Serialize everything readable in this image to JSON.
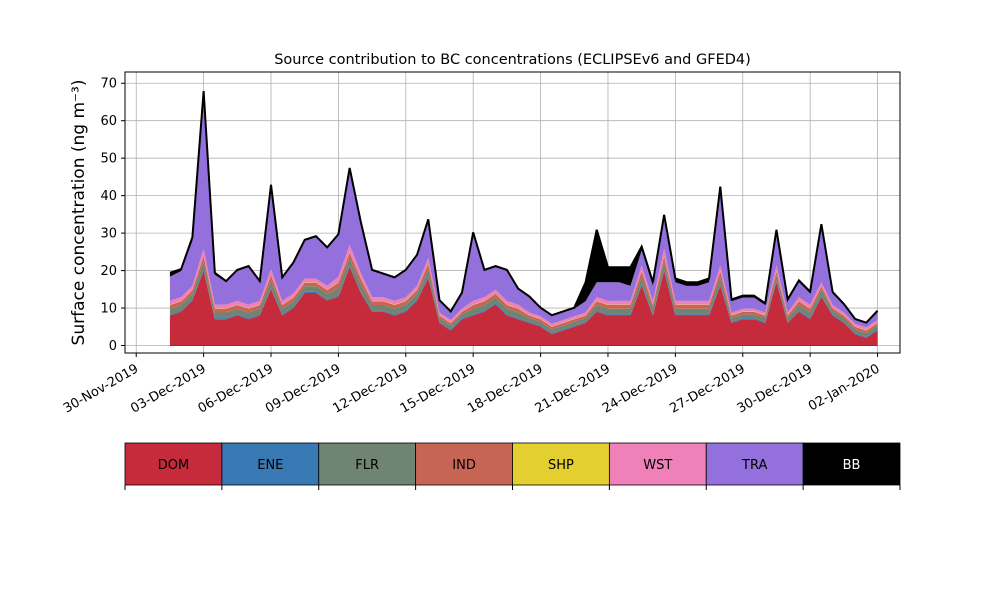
{
  "chart_data": {
    "type": "area",
    "stacked": true,
    "title": "Source contribution to BC concentrations (ECLIPSEv6 and GFED4)",
    "ylabel": "Surface concentration (ng m⁻³)",
    "xlabel": "",
    "ylim": [
      -2,
      73
    ],
    "xlim": [
      "2019-11-29T12:00",
      "2020-01-03T00:00"
    ],
    "yticks": [
      0,
      10,
      20,
      30,
      40,
      50,
      60,
      70
    ],
    "xticks": [
      {
        "date": "2019-11-30",
        "label": "30-Nov-2019"
      },
      {
        "date": "2019-12-03",
        "label": "03-Dec-2019"
      },
      {
        "date": "2019-12-06",
        "label": "06-Dec-2019"
      },
      {
        "date": "2019-12-09",
        "label": "09-Dec-2019"
      },
      {
        "date": "2019-12-12",
        "label": "12-Dec-2019"
      },
      {
        "date": "2019-12-15",
        "label": "15-Dec-2019"
      },
      {
        "date": "2019-12-18",
        "label": "18-Dec-2019"
      },
      {
        "date": "2019-12-21",
        "label": "21-Dec-2019"
      },
      {
        "date": "2019-12-24",
        "label": "24-Dec-2019"
      },
      {
        "date": "2019-12-27",
        "label": "27-Dec-2019"
      },
      {
        "date": "2019-12-30",
        "label": "30-Dec-2019"
      },
      {
        "date": "2020-01-02",
        "label": "02-Jan-2020"
      }
    ],
    "grid": true,
    "legend_placement": "below",
    "x": [
      "2019-12-01T12:00",
      "2019-12-02T00:00",
      "2019-12-02T12:00",
      "2019-12-03T00:00",
      "2019-12-03T12:00",
      "2019-12-04T00:00",
      "2019-12-04T12:00",
      "2019-12-05T00:00",
      "2019-12-05T12:00",
      "2019-12-06T00:00",
      "2019-12-06T12:00",
      "2019-12-07T00:00",
      "2019-12-07T12:00",
      "2019-12-08T00:00",
      "2019-12-08T12:00",
      "2019-12-09T00:00",
      "2019-12-09T12:00",
      "2019-12-10T00:00",
      "2019-12-10T12:00",
      "2019-12-11T00:00",
      "2019-12-11T12:00",
      "2019-12-12T00:00",
      "2019-12-12T12:00",
      "2019-12-13T00:00",
      "2019-12-13T12:00",
      "2019-12-14T00:00",
      "2019-12-14T12:00",
      "2019-12-15T00:00",
      "2019-12-15T12:00",
      "2019-12-16T00:00",
      "2019-12-16T12:00",
      "2019-12-17T00:00",
      "2019-12-17T12:00",
      "2019-12-18T00:00",
      "2019-12-18T12:00",
      "2019-12-19T00:00",
      "2019-12-19T12:00",
      "2019-12-20T00:00",
      "2019-12-20T12:00",
      "2019-12-21T00:00",
      "2019-12-21T12:00",
      "2019-12-22T00:00",
      "2019-12-22T12:00",
      "2019-12-23T00:00",
      "2019-12-23T12:00",
      "2019-12-24T00:00",
      "2019-12-24T12:00",
      "2019-12-25T00:00",
      "2019-12-25T12:00",
      "2019-12-26T00:00",
      "2019-12-26T12:00",
      "2019-12-27T00:00",
      "2019-12-27T12:00",
      "2019-12-28T00:00",
      "2019-12-28T12:00",
      "2019-12-29T00:00",
      "2019-12-29T12:00",
      "2019-12-30T00:00",
      "2019-12-30T12:00",
      "2019-12-31T00:00",
      "2019-12-31T12:00",
      "2020-01-01T00:00",
      "2020-01-01T12:00",
      "2020-01-02T00:00"
    ],
    "series": [
      {
        "name": "DOM",
        "color": "#c62b3b",
        "values": [
          8,
          9,
          12,
          20,
          7,
          7,
          8,
          7,
          8,
          15,
          8,
          10,
          14,
          14,
          12,
          13,
          21,
          14,
          9,
          9,
          8,
          9,
          12,
          18,
          6,
          4,
          7,
          8,
          9,
          11,
          8,
          7,
          6,
          5,
          3,
          4,
          5,
          6,
          9,
          8,
          8,
          8,
          16,
          8,
          20,
          8,
          8,
          8,
          8,
          16,
          6,
          7,
          7,
          6,
          17,
          6,
          9,
          7,
          13,
          8,
          6,
          3,
          2,
          4
        ]
      },
      {
        "name": "ENE",
        "color": "#3878b3",
        "values": [
          0.3,
          0.3,
          0.3,
          0.3,
          0.3,
          0.3,
          0.3,
          0.3,
          0.3,
          0.3,
          0.3,
          0.3,
          0.3,
          0.3,
          0.3,
          0.3,
          0.3,
          0.3,
          0.3,
          0.3,
          0.3,
          0.3,
          0.3,
          0.3,
          0.3,
          0.3,
          0.3,
          0.3,
          0.3,
          0.3,
          0.3,
          0.3,
          0.3,
          0.3,
          0.3,
          0.3,
          0.3,
          0.3,
          0.3,
          0.3,
          0.3,
          0.3,
          0.3,
          0.3,
          0.3,
          0.3,
          0.3,
          0.3,
          0.3,
          0.3,
          0.3,
          0.3,
          0.3,
          0.3,
          0.3,
          0.3,
          0.3,
          0.3,
          0.3,
          0.3,
          0.3,
          0.3,
          0.3,
          0.3
        ]
      },
      {
        "name": "FLR",
        "color": "#6f8472",
        "values": [
          1.5,
          1.5,
          1.5,
          2,
          1.5,
          1.5,
          1.5,
          1.5,
          1.5,
          2,
          1.5,
          1.5,
          1.5,
          1.5,
          1.5,
          2,
          2,
          2,
          1.5,
          1.5,
          1.5,
          1.5,
          1.5,
          2,
          1,
          1,
          1,
          1.5,
          1.5,
          1.5,
          1.5,
          1.5,
          1,
          1,
          1,
          1,
          1,
          1,
          1.5,
          1.5,
          1.5,
          1.5,
          2,
          1.5,
          2,
          1.5,
          1.5,
          1.5,
          1.5,
          2,
          1,
          1,
          1,
          1,
          1.5,
          1,
          1.5,
          1.5,
          1.5,
          1,
          1,
          1,
          1,
          1
        ]
      },
      {
        "name": "IND",
        "color": "#c86454",
        "values": [
          1,
          1,
          1,
          1.5,
          1,
          1,
          1,
          1,
          1,
          1.5,
          1,
          1,
          1,
          1,
          1,
          1.5,
          1.5,
          1.5,
          1,
          1,
          1,
          1,
          1,
          1.5,
          0.7,
          0.7,
          0.7,
          1,
          1,
          1,
          1,
          1,
          0.7,
          0.7,
          0.7,
          0.7,
          0.7,
          0.7,
          1,
          1,
          1,
          1,
          1.5,
          1,
          1.5,
          1,
          1,
          1,
          1,
          1.5,
          0.7,
          0.7,
          0.7,
          0.7,
          1,
          0.7,
          1,
          1,
          1,
          0.7,
          0.7,
          0.7,
          0.7,
          0.7
        ]
      },
      {
        "name": "SHP",
        "color": "#e3cf2f",
        "values": [
          0.1,
          0.1,
          0.1,
          0.1,
          0.1,
          0.1,
          0.1,
          0.1,
          0.1,
          0.1,
          0.1,
          0.1,
          0.1,
          0.1,
          0.1,
          0.1,
          0.1,
          0.1,
          0.1,
          0.1,
          0.1,
          0.1,
          0.1,
          0.1,
          0.1,
          0.1,
          0.1,
          0.1,
          0.1,
          0.1,
          0.1,
          0.1,
          0.1,
          0.1,
          0.1,
          0.1,
          0.1,
          0.1,
          0.1,
          0.1,
          0.1,
          0.1,
          0.1,
          0.1,
          0.1,
          0.1,
          0.1,
          0.1,
          0.1,
          0.1,
          0.1,
          0.1,
          0.1,
          0.1,
          0.1,
          0.1,
          0.1,
          0.1,
          0.1,
          0.1,
          0.1,
          0.1,
          0.1,
          0.1
        ]
      },
      {
        "name": "WST",
        "color": "#ef80b8",
        "values": [
          1,
          1,
          1,
          2,
          1,
          1,
          1,
          1,
          1,
          1.5,
          1,
          1,
          1,
          1,
          1,
          1.5,
          2,
          1.5,
          1,
          1,
          1,
          1,
          1,
          1.5,
          0.7,
          0.7,
          0.7,
          1,
          1,
          1,
          1,
          1,
          0.7,
          0.7,
          0.7,
          0.7,
          0.7,
          0.7,
          1,
          1,
          1,
          1,
          1.5,
          1,
          2,
          1,
          1,
          1,
          1,
          1.5,
          0.7,
          0.7,
          0.7,
          0.7,
          1.5,
          0.7,
          1,
          1,
          1,
          0.7,
          0.7,
          0.7,
          0.7,
          0.7
        ]
      },
      {
        "name": "TRA",
        "color": "#9370db",
        "values": [
          6.5,
          7,
          12,
          40,
          8,
          6,
          8,
          10,
          5,
          22,
          6,
          8,
          10,
          11,
          10,
          11,
          20,
          13,
          7,
          6,
          6,
          7,
          8,
          10,
          3,
          2,
          4,
          18,
          7,
          6,
          8,
          4,
          4,
          2,
          2,
          2,
          2,
          3,
          4,
          5,
          5,
          4,
          4,
          4,
          8,
          5,
          4,
          4,
          5,
          20,
          3,
          3,
          3,
          2,
          9,
          3,
          4,
          3,
          15,
          3,
          2,
          1,
          1,
          2
        ]
      },
      {
        "name": "BB",
        "color": "#000000",
        "values": [
          1,
          0.5,
          1,
          2,
          0.5,
          0.3,
          0.3,
          0.3,
          0.3,
          0.5,
          0.3,
          0.3,
          0.3,
          0.3,
          0.3,
          0.3,
          0.5,
          0.5,
          0.3,
          0.3,
          0.3,
          0.3,
          0.3,
          0.3,
          0.3,
          0.3,
          0.3,
          0.3,
          0.3,
          0.3,
          0.3,
          0.3,
          0.3,
          0.3,
          0.3,
          0.3,
          0.3,
          5,
          14,
          4,
          4,
          5,
          1,
          1,
          1,
          1,
          1,
          1,
          1,
          1,
          0.5,
          0.5,
          0.5,
          0.5,
          0.5,
          0.5,
          0.5,
          0.5,
          0.5,
          0.5,
          0.3,
          0.3,
          0.3,
          0.5
        ]
      }
    ]
  }
}
